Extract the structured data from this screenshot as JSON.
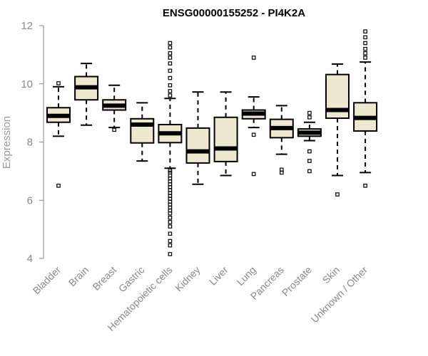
{
  "chart_data": {
    "type": "box",
    "title": "ENSG00000155252 - PI4K2A",
    "ylabel": "Expression",
    "ylim": [
      4,
      12
    ],
    "yticks": [
      4,
      6,
      8,
      10,
      12
    ],
    "grid": false,
    "box_fill": "#eee8d0",
    "categories": [
      "Bladder",
      "Brain",
      "Breast",
      "Gastric",
      "Hematopoietic cells",
      "Kidney",
      "Liver",
      "Lung",
      "Pancreas",
      "Prostate",
      "Skin",
      "Unknown / Other"
    ],
    "boxes": [
      {
        "whisker_low": 8.2,
        "q1": 8.68,
        "median": 8.9,
        "q3": 9.18,
        "whisker_high": 9.9,
        "outliers": [
          6.5,
          10.02
        ]
      },
      {
        "whisker_low": 8.58,
        "q1": 9.45,
        "median": 9.88,
        "q3": 10.25,
        "whisker_high": 10.7,
        "outliers": []
      },
      {
        "whisker_low": 8.5,
        "q1": 9.1,
        "median": 9.25,
        "q3": 9.45,
        "whisker_high": 9.95,
        "outliers": [
          8.42
        ]
      },
      {
        "whisker_low": 7.35,
        "q1": 7.97,
        "median": 8.6,
        "q3": 8.8,
        "whisker_high": 9.35,
        "outliers": []
      },
      {
        "whisker_low": 7.1,
        "q1": 7.98,
        "median": 8.3,
        "q3": 8.6,
        "whisker_high": 9.5,
        "outliers": [
          4.15,
          4.45,
          4.6,
          4.85,
          5.1,
          5.25,
          5.4,
          5.55,
          5.65,
          5.75,
          5.85,
          5.95,
          6.05,
          6.15,
          6.25,
          6.35,
          6.45,
          6.55,
          6.65,
          6.75,
          6.85,
          6.95,
          7.02,
          9.6,
          9.75,
          9.95,
          10.2,
          10.45,
          10.7,
          10.9,
          11.05,
          11.25,
          11.4
        ]
      },
      {
        "whisker_low": 6.55,
        "q1": 7.28,
        "median": 7.68,
        "q3": 8.48,
        "whisker_high": 9.72,
        "outliers": []
      },
      {
        "whisker_low": 6.85,
        "q1": 7.33,
        "median": 7.78,
        "q3": 8.85,
        "whisker_high": 9.72,
        "outliers": []
      },
      {
        "whisker_low": 8.5,
        "q1": 8.8,
        "median": 8.98,
        "q3": 9.1,
        "whisker_high": 9.55,
        "outliers": [
          6.9,
          8.25,
          10.9
        ]
      },
      {
        "whisker_low": 7.58,
        "q1": 8.15,
        "median": 8.48,
        "q3": 8.78,
        "whisker_high": 9.25,
        "outliers": [
          6.95,
          7.05
        ]
      },
      {
        "whisker_low": 8.05,
        "q1": 8.2,
        "median": 8.32,
        "q3": 8.45,
        "whisker_high": 8.68,
        "outliers": [
          7.0,
          7.35,
          7.68,
          8.85,
          9.0
        ]
      },
      {
        "whisker_low": 6.85,
        "q1": 8.82,
        "median": 9.1,
        "q3": 10.32,
        "whisker_high": 10.68,
        "outliers": [
          6.2
        ]
      },
      {
        "whisker_low": 6.95,
        "q1": 8.38,
        "median": 8.83,
        "q3": 9.35,
        "whisker_high": 10.75,
        "outliers": [
          6.5,
          10.9,
          11.05,
          11.2,
          11.4,
          11.6,
          11.8
        ]
      }
    ]
  }
}
